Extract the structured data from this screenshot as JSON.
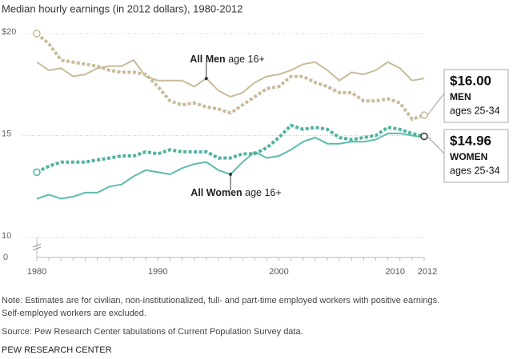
{
  "chart_data": {
    "type": "line",
    "title": "Median hourly earnings (in 2012 dollars), 1980-2012",
    "x": [
      1980,
      1981,
      1982,
      1983,
      1984,
      1985,
      1986,
      1987,
      1988,
      1989,
      1990,
      1991,
      1992,
      1993,
      1994,
      1995,
      1996,
      1997,
      1998,
      1999,
      2000,
      2001,
      2002,
      2003,
      2004,
      2005,
      2006,
      2007,
      2008,
      2009,
      2010,
      2011,
      2012
    ],
    "xlim": [
      1980,
      2012
    ],
    "xticks": [
      1980,
      1990,
      2000,
      2010,
      2012
    ],
    "ylim": [
      10,
      20
    ],
    "yticks": [
      {
        "value": 20,
        "label": "$20"
      },
      15,
      10
    ],
    "break_tick": 0,
    "grid": true,
    "series": [
      {
        "name": "All Men",
        "detail": "age 16+",
        "color": "#c9bb9c",
        "dashed": false,
        "values": [
          18.6,
          18.2,
          18.3,
          17.9,
          18.0,
          18.3,
          18.4,
          18.4,
          18.7,
          17.9,
          17.7,
          17.7,
          17.7,
          17.4,
          17.8,
          17.2,
          16.9,
          17.1,
          17.6,
          17.9,
          18.0,
          18.2,
          18.5,
          18.6,
          18.2,
          17.7,
          18.1,
          18.0,
          18.2,
          18.6,
          18.3,
          17.7,
          17.8
        ]
      },
      {
        "name": "MEN",
        "detail": "ages 25-34",
        "color": "#c9bb9c",
        "dashed": true,
        "values": [
          20.0,
          19.5,
          18.7,
          18.6,
          18.5,
          18.4,
          18.2,
          18.1,
          18.1,
          18.0,
          17.4,
          16.7,
          16.5,
          16.6,
          16.4,
          16.3,
          16.1,
          16.5,
          16.9,
          17.3,
          17.4,
          17.9,
          17.9,
          17.6,
          17.4,
          17.1,
          17.1,
          16.7,
          16.7,
          16.8,
          16.6,
          15.8,
          16.0
        ],
        "value_labels": [
          null,
          null,
          null,
          null,
          null,
          null,
          null,
          null,
          null,
          null,
          null,
          null,
          null,
          null,
          null,
          null,
          null,
          null,
          null,
          null,
          null,
          null,
          null,
          null,
          null,
          null,
          null,
          null,
          null,
          null,
          null,
          null,
          "$16.00"
        ]
      },
      {
        "name": "All Women",
        "detail": "age 16+",
        "color": "#5cbcab",
        "dashed": false,
        "values": [
          11.9,
          12.1,
          11.9,
          12.0,
          12.2,
          12.2,
          12.5,
          12.6,
          13.0,
          13.3,
          13.2,
          13.1,
          13.4,
          13.6,
          13.7,
          13.3,
          13.1,
          13.7,
          14.2,
          13.9,
          14.0,
          14.3,
          14.7,
          14.9,
          14.6,
          14.6,
          14.7,
          14.7,
          14.8,
          15.1,
          15.1,
          15.0,
          14.9
        ]
      },
      {
        "name": "WOMEN",
        "detail": "ages 25-34",
        "color": "#4fb4a0",
        "dashed": true,
        "values": [
          13.2,
          13.5,
          13.7,
          13.7,
          13.7,
          13.8,
          13.9,
          14.0,
          14.0,
          14.2,
          14.1,
          14.3,
          14.2,
          14.2,
          14.2,
          13.9,
          13.9,
          14.1,
          14.1,
          14.4,
          14.9,
          15.5,
          15.3,
          15.4,
          15.3,
          14.9,
          14.8,
          14.9,
          15.0,
          15.4,
          15.3,
          15.1,
          14.96
        ],
        "value_labels": [
          null,
          null,
          null,
          null,
          null,
          null,
          null,
          null,
          null,
          null,
          null,
          null,
          null,
          null,
          null,
          null,
          null,
          null,
          null,
          null,
          null,
          null,
          null,
          null,
          null,
          null,
          null,
          null,
          null,
          null,
          null,
          null,
          "$14.96"
        ]
      }
    ],
    "notes": [
      "Note: Estimates are for civilian, non-institutionalized, full- and part-time employed workers with positive earnings.",
      "Self-employed workers are excluded."
    ],
    "source": "Source: Pew Research Center tabulations of Current Population Survey data.",
    "footer": "PEW RESEARCH CENTER"
  }
}
